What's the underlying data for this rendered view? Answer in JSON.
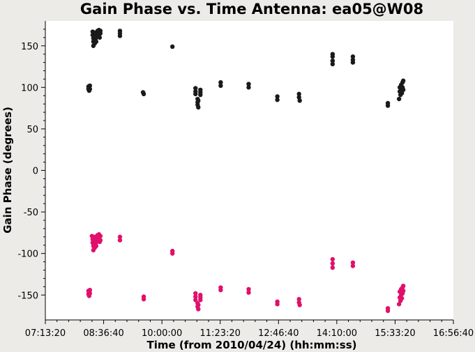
{
  "chart_data": {
    "type": "scatter",
    "title": "Gain Phase vs. Time Antenna: ea05@W08",
    "xlabel": "Time (from 2010/04/24) (hh:mm:ss)",
    "ylabel": "Gain Phase (degrees)",
    "xlim": [
      "07:13:20",
      "16:56:40"
    ],
    "ylim": [
      -180,
      180
    ],
    "x_ticks": [
      "07:13:20",
      "08:36:40",
      "10:00:00",
      "11:23:20",
      "12:46:40",
      "14:10:00",
      "15:33:20",
      "16:56:40"
    ],
    "y_ticks": [
      150,
      100,
      50,
      0,
      -50,
      -100,
      -150
    ],
    "grid": false,
    "background": "#ffffff",
    "series": [
      {
        "color": "#1a1a1a",
        "points": [
          [
            "08:15",
            98
          ],
          [
            "08:15",
            101
          ],
          [
            "08:16",
            96
          ],
          [
            "08:16",
            100
          ],
          [
            "08:17",
            102
          ],
          [
            "08:17",
            98
          ],
          [
            "08:21",
            167
          ],
          [
            "08:21",
            163
          ],
          [
            "08:22",
            159
          ],
          [
            "08:22",
            155
          ],
          [
            "08:22",
            150
          ],
          [
            "08:23",
            166
          ],
          [
            "08:23",
            160
          ],
          [
            "08:23",
            156
          ],
          [
            "08:24",
            153
          ],
          [
            "08:24",
            164
          ],
          [
            "08:25",
            162
          ],
          [
            "08:25",
            158
          ],
          [
            "08:26",
            155
          ],
          [
            "08:27",
            165
          ],
          [
            "08:27",
            161
          ],
          [
            "08:28",
            168
          ],
          [
            "08:28",
            163
          ],
          [
            "08:30",
            169
          ],
          [
            "08:30",
            164
          ],
          [
            "08:31",
            160
          ],
          [
            "08:32",
            168
          ],
          [
            "08:32",
            165
          ],
          [
            "09:00",
            168
          ],
          [
            "09:00",
            165
          ],
          [
            "09:00",
            162
          ],
          [
            "09:33",
            94
          ],
          [
            "09:34",
            92
          ],
          [
            "10:15",
            149
          ],
          [
            "10:48",
            99
          ],
          [
            "10:48",
            95
          ],
          [
            "10:48",
            92
          ],
          [
            "10:51",
            86
          ],
          [
            "10:51",
            82
          ],
          [
            "10:51",
            79
          ],
          [
            "10:52",
            76
          ],
          [
            "10:52",
            84
          ],
          [
            "10:55",
            97
          ],
          [
            "10:55",
            94
          ],
          [
            "10:55",
            91
          ],
          [
            "11:24",
            106
          ],
          [
            "11:24",
            102
          ],
          [
            "12:04",
            104
          ],
          [
            "12:04",
            100
          ],
          [
            "12:45",
            89
          ],
          [
            "12:45",
            85
          ],
          [
            "13:16",
            92
          ],
          [
            "13:16",
            88
          ],
          [
            "13:17",
            84
          ],
          [
            "14:04",
            140
          ],
          [
            "14:04",
            137
          ],
          [
            "14:04",
            132
          ],
          [
            "14:04",
            128
          ],
          [
            "14:33",
            137
          ],
          [
            "14:33",
            133
          ],
          [
            "14:33",
            130
          ],
          [
            "15:23",
            81
          ],
          [
            "15:23",
            78
          ],
          [
            "15:39",
            86
          ],
          [
            "15:40",
            100
          ],
          [
            "15:40",
            95
          ],
          [
            "15:41",
            91
          ],
          [
            "15:42",
            103
          ],
          [
            "15:42",
            97
          ],
          [
            "15:43",
            93
          ],
          [
            "15:44",
            106
          ],
          [
            "15:44",
            100
          ],
          [
            "15:45",
            108
          ],
          [
            "15:45",
            97
          ]
        ]
      },
      {
        "color": "#e0106b",
        "points": [
          [
            "08:15",
            -145
          ],
          [
            "08:15",
            -149
          ],
          [
            "08:16",
            -147
          ],
          [
            "08:16",
            -151
          ],
          [
            "08:17",
            -144
          ],
          [
            "08:17",
            -148
          ],
          [
            "08:20",
            -79
          ],
          [
            "08:21",
            -83
          ],
          [
            "08:21",
            -87
          ],
          [
            "08:22",
            -91
          ],
          [
            "08:22",
            -96
          ],
          [
            "08:23",
            -81
          ],
          [
            "08:23",
            -85
          ],
          [
            "08:23",
            -89
          ],
          [
            "08:24",
            -93
          ],
          [
            "08:24",
            -80
          ],
          [
            "08:25",
            -84
          ],
          [
            "08:25",
            -88
          ],
          [
            "08:26",
            -91
          ],
          [
            "08:27",
            -82
          ],
          [
            "08:27",
            -86
          ],
          [
            "08:28",
            -78
          ],
          [
            "08:28",
            -83
          ],
          [
            "08:30",
            -77
          ],
          [
            "08:30",
            -81
          ],
          [
            "08:31",
            -86
          ],
          [
            "08:32",
            -79
          ],
          [
            "08:32",
            -84
          ],
          [
            "09:00",
            -80
          ],
          [
            "09:00",
            -84
          ],
          [
            "09:34",
            -152
          ],
          [
            "09:34",
            -155
          ],
          [
            "10:15",
            -97
          ],
          [
            "10:15",
            -100
          ],
          [
            "10:48",
            -148
          ],
          [
            "10:48",
            -152
          ],
          [
            "10:48",
            -156
          ],
          [
            "10:51",
            -160
          ],
          [
            "10:51",
            -164
          ],
          [
            "10:52",
            -167
          ],
          [
            "10:52",
            -162
          ],
          [
            "10:55",
            -150
          ],
          [
            "10:55",
            -153
          ],
          [
            "10:55",
            -156
          ],
          [
            "11:24",
            -141
          ],
          [
            "11:24",
            -144
          ],
          [
            "12:04",
            -143
          ],
          [
            "12:04",
            -147
          ],
          [
            "12:45",
            -158
          ],
          [
            "12:45",
            -161
          ],
          [
            "13:16",
            -155
          ],
          [
            "13:16",
            -159
          ],
          [
            "13:17",
            -162
          ],
          [
            "14:04",
            -107
          ],
          [
            "14:04",
            -112
          ],
          [
            "14:04",
            -117
          ],
          [
            "14:33",
            -111
          ],
          [
            "14:33",
            -115
          ],
          [
            "15:23",
            -166
          ],
          [
            "15:23",
            -169
          ],
          [
            "15:39",
            -161
          ],
          [
            "15:40",
            -146
          ],
          [
            "15:40",
            -153
          ],
          [
            "15:41",
            -157
          ],
          [
            "15:42",
            -143
          ],
          [
            "15:42",
            -150
          ],
          [
            "15:43",
            -154
          ],
          [
            "15:44",
            -141
          ],
          [
            "15:44",
            -148
          ],
          [
            "15:45",
            -139
          ],
          [
            "15:45",
            -145
          ]
        ]
      }
    ]
  }
}
